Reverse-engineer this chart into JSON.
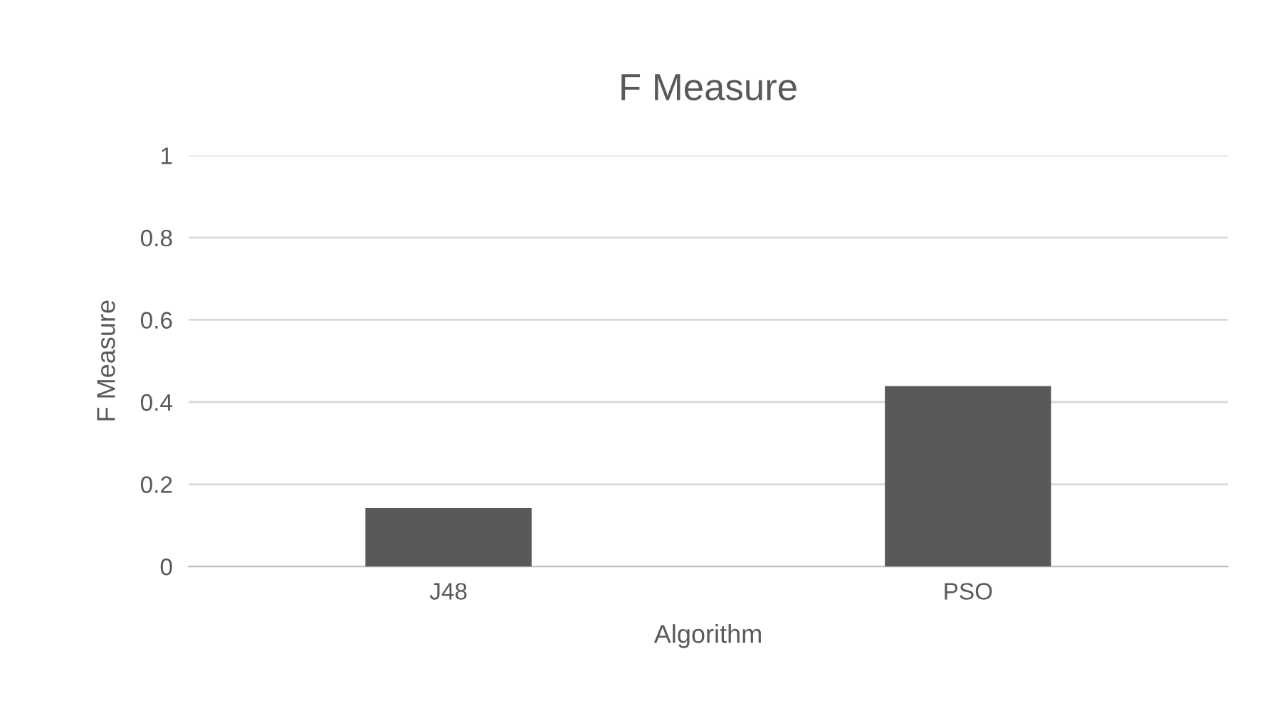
{
  "chart_data": {
    "type": "bar",
    "title": "F Measure",
    "xlabel": "Algorithm",
    "ylabel": "F Measure",
    "categories": [
      "J48",
      "PSO"
    ],
    "values": [
      0.142,
      0.439
    ],
    "color": "#595959",
    "ylim": [
      0,
      1
    ],
    "yticks": [
      0,
      0.2,
      0.4,
      0.6,
      0.8,
      1
    ],
    "grid": "y",
    "legend": false
  }
}
